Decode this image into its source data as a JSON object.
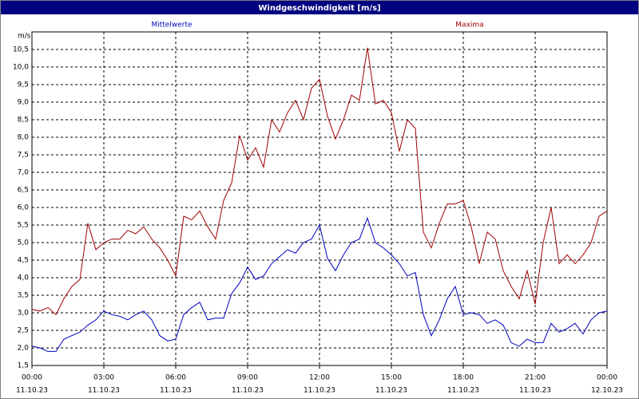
{
  "chart_data": {
    "type": "line",
    "title": "Windgeschwindigkeit [m/s]",
    "y_unit": "m/s",
    "x": [
      0,
      20,
      40,
      60,
      80,
      100,
      120,
      140,
      160,
      180,
      200,
      220,
      240,
      260,
      280,
      300,
      320,
      340,
      360,
      380,
      400,
      420,
      440,
      460,
      480,
      500,
      520,
      540,
      560,
      580,
      600,
      620,
      640,
      660,
      680,
      700,
      720,
      740,
      760,
      780,
      800,
      820,
      840,
      860,
      880,
      900,
      920,
      940,
      960,
      980,
      1000,
      1020,
      1040,
      1060,
      1080,
      1100,
      1120,
      1140,
      1160,
      1180,
      1200,
      1220,
      1240,
      1260,
      1280,
      1300,
      1320,
      1340,
      1360,
      1380,
      1400,
      1420,
      1440
    ],
    "xlim": [
      0,
      1440
    ],
    "xticks": [
      {
        "value": 0,
        "label": "00:00",
        "date": "11.10.23"
      },
      {
        "value": 180,
        "label": "03:00",
        "date": "11.10.23"
      },
      {
        "value": 360,
        "label": "06:00",
        "date": "11.10.23"
      },
      {
        "value": 540,
        "label": "09:00",
        "date": "11.10.23"
      },
      {
        "value": 720,
        "label": "12:00",
        "date": "11.10.23"
      },
      {
        "value": 900,
        "label": "15:00",
        "date": "11.10.23"
      },
      {
        "value": 1080,
        "label": "18:00",
        "date": "11.10.23"
      },
      {
        "value": 1260,
        "label": "21:00",
        "date": "11.10.23"
      },
      {
        "value": 1440,
        "label": "00:00",
        "date": "12.10.23"
      }
    ],
    "ylim": [
      1.5,
      11.0
    ],
    "yticks": [
      {
        "value": 1.5,
        "label": "1,5"
      },
      {
        "value": 2,
        "label": "2,0"
      },
      {
        "value": 2.5,
        "label": "2,5"
      },
      {
        "value": 3,
        "label": "3,0"
      },
      {
        "value": 3.5,
        "label": "3,5"
      },
      {
        "value": 4,
        "label": "4,0"
      },
      {
        "value": 4.5,
        "label": "4,5"
      },
      {
        "value": 5,
        "label": "5,0"
      },
      {
        "value": 5.5,
        "label": "5,5"
      },
      {
        "value": 6,
        "label": "6,0"
      },
      {
        "value": 6.5,
        "label": "6,5"
      },
      {
        "value": 7,
        "label": "7,0"
      },
      {
        "value": 7.5,
        "label": "7,5"
      },
      {
        "value": 8,
        "label": "8,0"
      },
      {
        "value": 8.5,
        "label": "8,5"
      },
      {
        "value": 9,
        "label": "9,0"
      },
      {
        "value": 9.5,
        "label": "9,5"
      },
      {
        "value": 10,
        "label": "10,0"
      },
      {
        "value": 10.5,
        "label": "10,5"
      }
    ],
    "grid": true,
    "series": [
      {
        "name": "Mittelwerte",
        "color": "#0000c0",
        "values": [
          2.05,
          2.0,
          1.9,
          1.9,
          2.25,
          2.35,
          2.45,
          2.65,
          2.8,
          3.05,
          2.95,
          2.9,
          2.8,
          2.95,
          3.05,
          2.8,
          2.35,
          2.2,
          2.25,
          2.95,
          3.15,
          3.3,
          2.8,
          2.85,
          2.85,
          3.55,
          3.85,
          4.3,
          3.95,
          4.05,
          4.4,
          4.6,
          4.8,
          4.7,
          5.0,
          5.1,
          5.5,
          4.55,
          4.2,
          4.65,
          5.0,
          5.1,
          5.7,
          5.0,
          4.85,
          4.65,
          4.4,
          4.05,
          4.15,
          2.95,
          2.35,
          2.8,
          3.4,
          3.75,
          2.95,
          3.0,
          2.95,
          2.7,
          2.8,
          2.65,
          2.15,
          2.05,
          2.25,
          2.15,
          2.15,
          2.7,
          2.45,
          2.55,
          2.7,
          2.4,
          2.8,
          3.0,
          3.05
        ]
      },
      {
        "name": "Maxima",
        "color": "#a00000",
        "values": [
          3.1,
          3.05,
          3.15,
          2.95,
          3.4,
          3.75,
          3.95,
          5.55,
          4.8,
          5.0,
          5.1,
          5.1,
          5.35,
          5.25,
          5.45,
          5.1,
          4.85,
          4.5,
          4.05,
          5.75,
          5.65,
          5.9,
          5.45,
          5.1,
          6.2,
          6.7,
          8.05,
          7.35,
          7.7,
          7.15,
          8.5,
          8.15,
          8.7,
          9.05,
          8.5,
          9.4,
          9.65,
          8.6,
          7.95,
          8.5,
          9.2,
          9.05,
          10.55,
          8.95,
          9.05,
          8.7,
          7.6,
          8.5,
          8.25,
          5.3,
          4.85,
          5.55,
          6.1,
          6.1,
          6.2,
          5.45,
          4.4,
          5.3,
          5.1,
          4.2,
          3.75,
          3.4,
          4.2,
          3.25,
          5.0,
          6.0,
          4.4,
          4.65,
          4.4,
          4.65,
          5.0,
          5.75,
          5.9
        ]
      }
    ]
  }
}
